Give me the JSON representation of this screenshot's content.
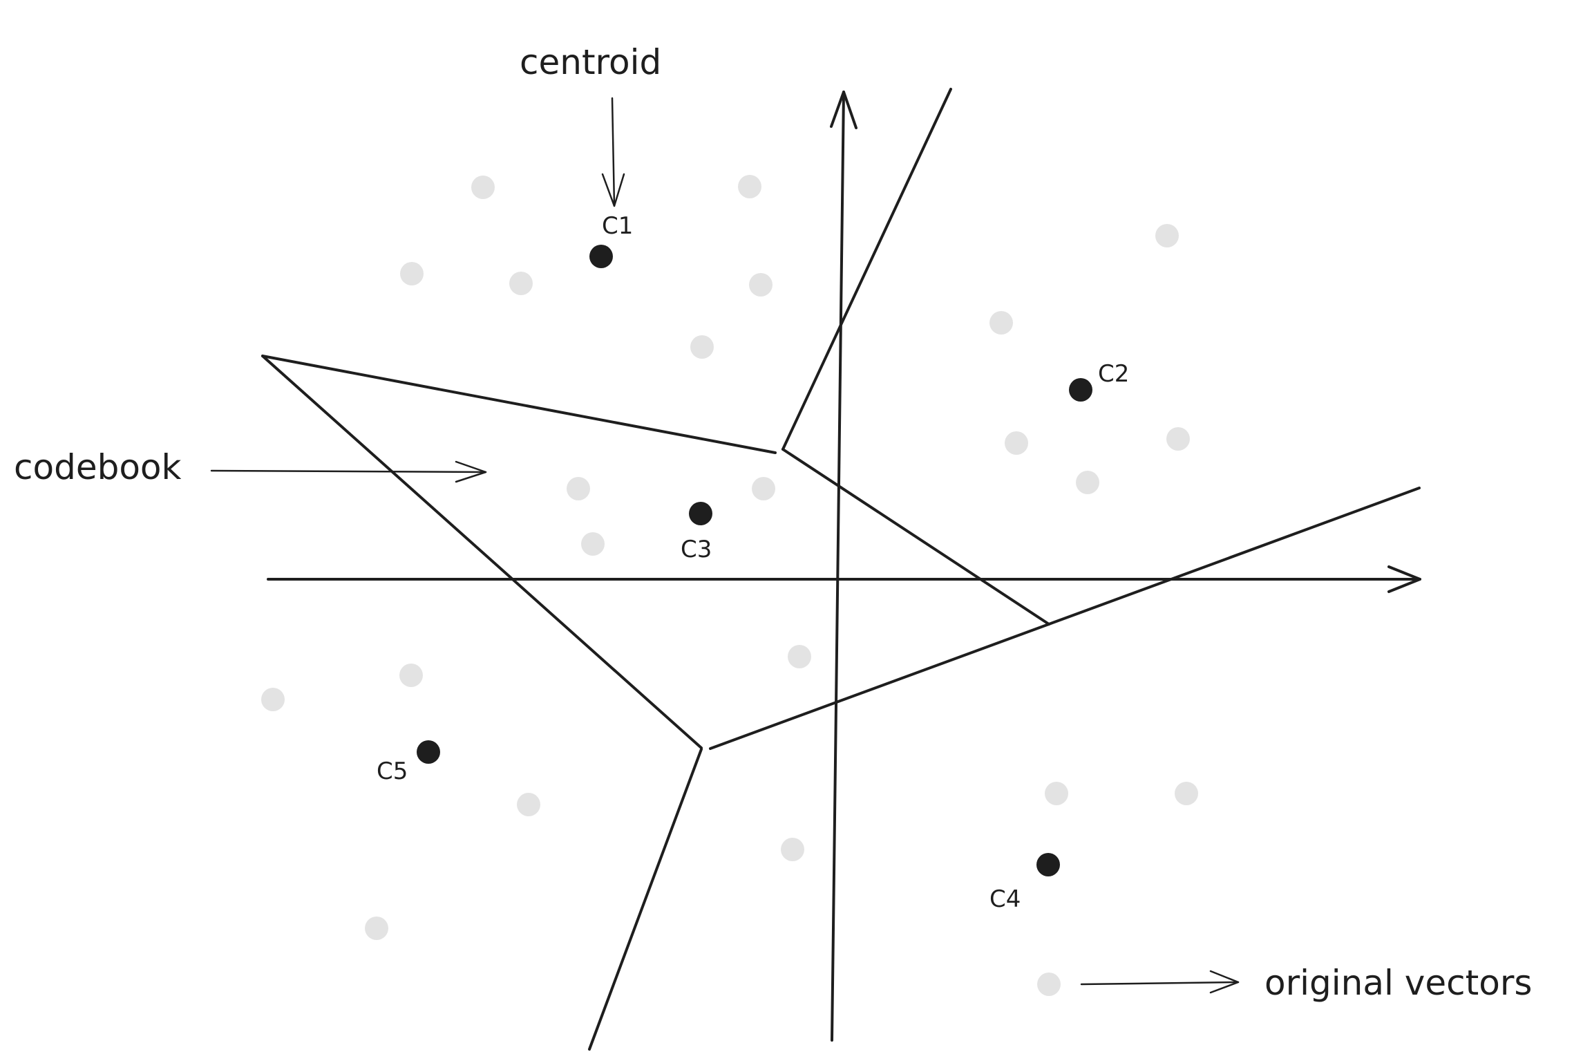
{
  "labels": {
    "centroid": "centroid",
    "codebook": "codebook",
    "original_vectors": "original vectors"
  },
  "centroids": [
    {
      "id": "c1",
      "label": "C1"
    },
    {
      "id": "c2",
      "label": "C2"
    },
    {
      "id": "c3",
      "label": "C3"
    },
    {
      "id": "c4",
      "label": "C4"
    },
    {
      "id": "c5",
      "label": "C5"
    }
  ],
  "colors": {
    "stroke": "#1e1e1e",
    "centroid": "#1e1e1e",
    "vector": "#e3e3e3",
    "background": "#ffffff"
  }
}
